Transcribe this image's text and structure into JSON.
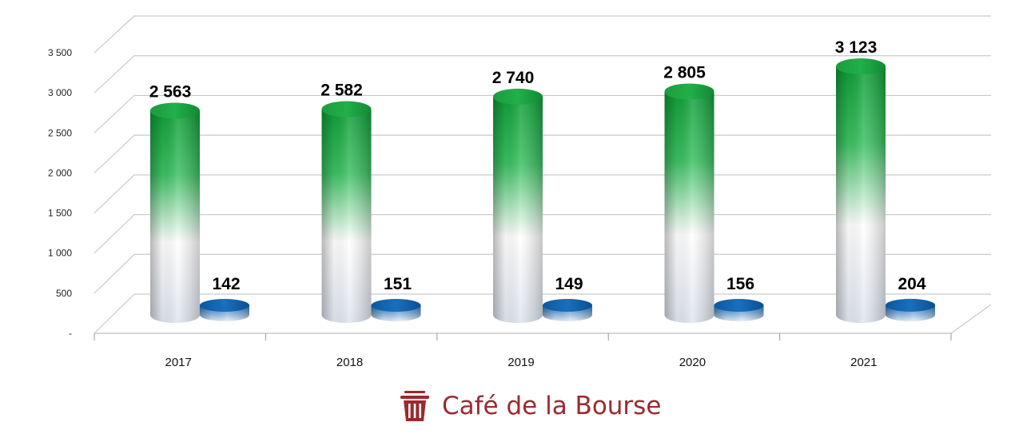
{
  "chart_data": {
    "type": "bar",
    "categories": [
      "2017",
      "2018",
      "2019",
      "2020",
      "2021"
    ],
    "series": [
      {
        "color": "#10a33a",
        "values": [
          2563,
          2582,
          2740,
          2805,
          3123
        ],
        "labels": [
          "2 563",
          "2 582",
          "2 740",
          "2 805",
          "3 123"
        ]
      },
      {
        "color": "#0e63ad",
        "values": [
          142,
          151,
          149,
          156,
          204
        ],
        "labels": [
          "142",
          "151",
          "149",
          "156",
          "204"
        ]
      }
    ],
    "ylim": [
      0,
      3500
    ],
    "yticks": [
      0,
      500,
      1000,
      1500,
      2000,
      2500,
      3000,
      3500
    ],
    "ytick_labels": [
      "-",
      "500",
      "1 000",
      "1 500",
      "2 000",
      "2 500",
      "3 000",
      "3 500"
    ],
    "grid": true,
    "style": "3d-cylinder"
  },
  "brand": {
    "name": "Café de la Bourse",
    "icon": "trash-bin-icon",
    "color": "#9a2a2e"
  }
}
